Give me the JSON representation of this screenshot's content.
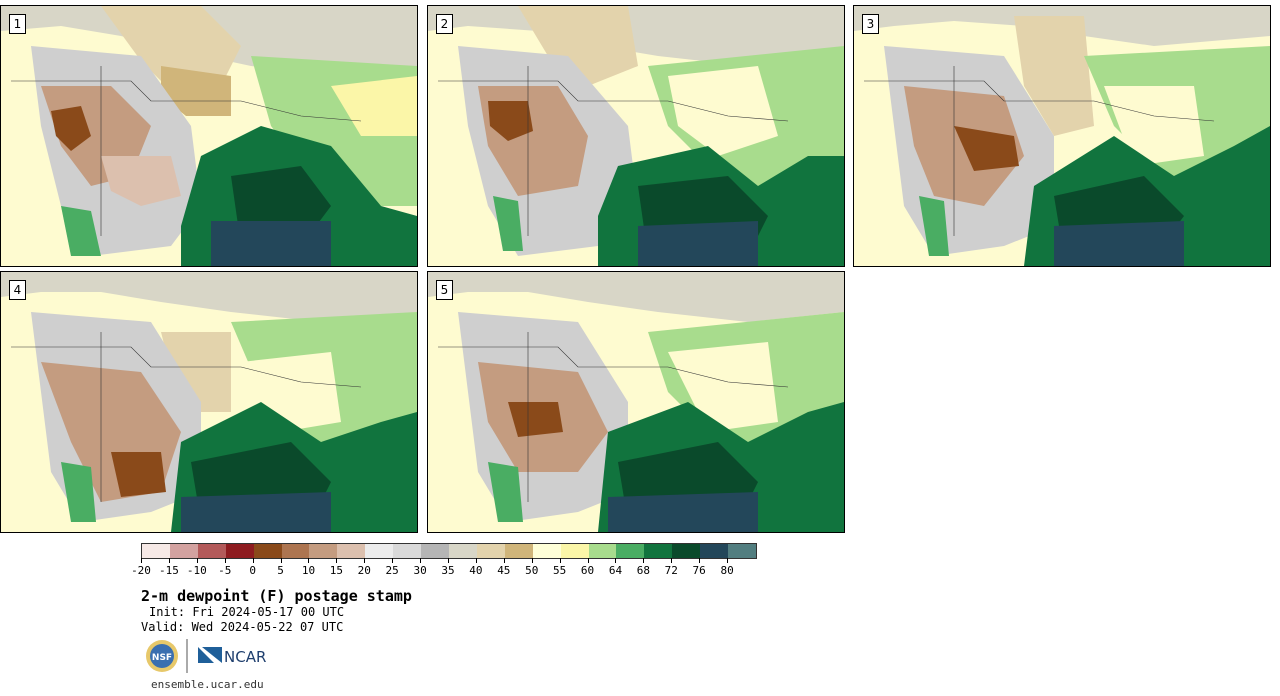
{
  "panels": [
    {
      "label": "1"
    },
    {
      "label": "2"
    },
    {
      "label": "3"
    },
    {
      "label": "4"
    },
    {
      "label": "5"
    }
  ],
  "colorbar": {
    "colors": [
      "#f6e9e6",
      "#d3a2a0",
      "#b35a5a",
      "#8e1c20",
      "#8a4a1a",
      "#ad7550",
      "#c49c80",
      "#dcc0ae",
      "#ececec",
      "#d9d9d9",
      "#b5b5b5",
      "#d8d6c7",
      "#e3d3ac",
      "#d0b57a",
      "#ffffd8",
      "#fbf6a8",
      "#a8dc8d",
      "#4aad63",
      "#11743e",
      "#0a4a2b",
      "#23475a",
      "#527e80"
    ],
    "tick_labels": [
      "-20",
      "-15",
      "-10",
      "-5",
      "0",
      "5",
      "10",
      "15",
      "20",
      "25",
      "30",
      "35",
      "40",
      "45",
      "50",
      "55",
      "60",
      "64",
      "68",
      "72",
      "76",
      "80"
    ]
  },
  "title": "2-m dewpoint (F) postage stamp",
  "init": "Init: Fri 2024-05-17 00 UTC",
  "valid": "Valid: Wed 2024-05-22 07 UTC",
  "logos": {
    "nsf": "NSF",
    "ncar": "NCAR"
  },
  "site": "ensemble.ucar.edu"
}
